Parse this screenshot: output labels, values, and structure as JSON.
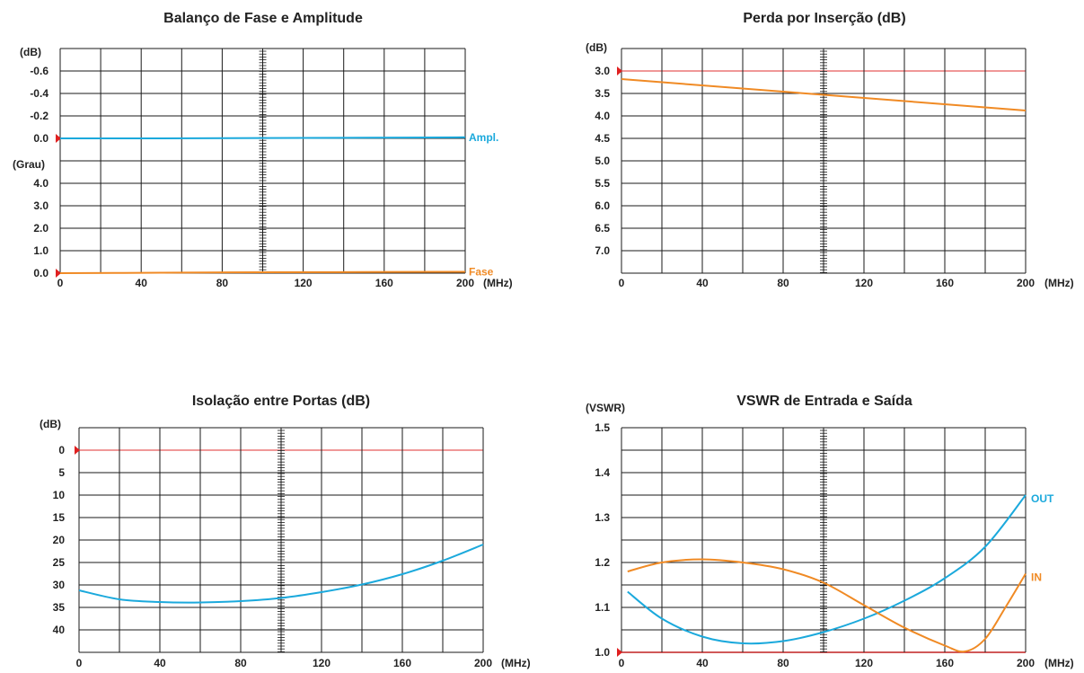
{
  "chart_data": [
    {
      "type": "line",
      "title": "Balanço de Fase e Amplitude",
      "x_unit": "(MHz)",
      "x_ticks": [
        "0",
        "40",
        "80",
        "120",
        "160",
        "200"
      ],
      "xlim": [
        0,
        200
      ],
      "upper_unit": "(dB)",
      "upper_ticks": [
        "-0.6",
        "-0.4",
        "-0.2",
        "0.0"
      ],
      "upper_ylim": [
        -0.6,
        0.0
      ],
      "lower_unit": "(Grau)",
      "lower_ticks": [
        "4.0",
        "3.0",
        "2.0",
        "1.0",
        "0.0"
      ],
      "lower_ylim": [
        0.0,
        4.0
      ],
      "series": [
        {
          "name": "Ampl.",
          "color": "#1ba9dc",
          "panel": "upper",
          "x": [
            0,
            50,
            100,
            150,
            200
          ],
          "y": [
            0.0,
            0.0,
            -0.003,
            -0.006,
            -0.01
          ]
        },
        {
          "name": "Fase",
          "color": "#f08a24",
          "panel": "lower",
          "x": [
            0,
            50,
            100,
            150,
            200
          ],
          "y": [
            0.0,
            0.02,
            0.04,
            0.05,
            0.06
          ]
        }
      ],
      "grid": true
    },
    {
      "type": "line",
      "title": "Perda por Inserção (dB)",
      "y_unit": "(dB)",
      "x_unit": "(MHz)",
      "x_ticks": [
        "0",
        "40",
        "80",
        "120",
        "160",
        "200"
      ],
      "xlim": [
        0,
        200
      ],
      "y_ticks": [
        "3.0",
        "3.5",
        "4.0",
        "4.5",
        "5.0",
        "5.5",
        "6.0",
        "6.5",
        "7.0"
      ],
      "ylim": [
        3.0,
        7.5
      ],
      "inverted_y": true,
      "reference_line": 3.0,
      "series": [
        {
          "name": "",
          "color": "#f08a24",
          "x": [
            0,
            200
          ],
          "y": [
            3.18,
            3.88
          ]
        }
      ],
      "grid": true
    },
    {
      "type": "line",
      "title": "Isolação entre Portas (dB)",
      "y_unit": "(dB)",
      "x_unit": "(MHz)",
      "x_ticks": [
        "0",
        "40",
        "80",
        "120",
        "160",
        "200"
      ],
      "xlim": [
        0,
        200
      ],
      "y_ticks": [
        "0",
        "5",
        "10",
        "15",
        "20",
        "25",
        "30",
        "35",
        "40"
      ],
      "ylim": [
        -2,
        45
      ],
      "inverted_y": true,
      "reference_line": 0,
      "series": [
        {
          "name": "",
          "color": "#1ba9dc",
          "x": [
            0,
            20,
            40,
            60,
            80,
            100,
            120,
            140,
            160,
            180,
            200
          ],
          "y": [
            31.2,
            33.2,
            33.8,
            33.9,
            33.6,
            32.9,
            31.6,
            29.9,
            27.6,
            24.6,
            21.0
          ]
        }
      ],
      "grid": true
    },
    {
      "type": "line",
      "title": "VSWR de Entrada e Saída",
      "y_unit": "(VSWR)",
      "x_unit": "(MHz)",
      "x_ticks": [
        "0",
        "40",
        "80",
        "120",
        "160",
        "200"
      ],
      "xlim": [
        0,
        200
      ],
      "y_ticks": [
        "1.5",
        "1.4",
        "1.3",
        "1.2",
        "1.1",
        "1.0"
      ],
      "ylim": [
        1.0,
        1.5
      ],
      "reference_line": 1.0,
      "series": [
        {
          "name": "OUT",
          "color": "#1ba9dc",
          "x": [
            3,
            20,
            40,
            60,
            80,
            100,
            120,
            140,
            160,
            180,
            200
          ],
          "y": [
            1.135,
            1.075,
            1.035,
            1.02,
            1.025,
            1.045,
            1.075,
            1.115,
            1.165,
            1.235,
            1.35
          ]
        },
        {
          "name": "IN",
          "color": "#f08a24",
          "x": [
            3,
            20,
            40,
            60,
            80,
            100,
            120,
            140,
            160,
            170,
            180,
            190,
            200
          ],
          "y": [
            1.18,
            1.2,
            1.207,
            1.2,
            1.185,
            1.155,
            1.105,
            1.055,
            1.015,
            1.002,
            1.03,
            1.1,
            1.175
          ]
        }
      ],
      "grid": true
    }
  ]
}
